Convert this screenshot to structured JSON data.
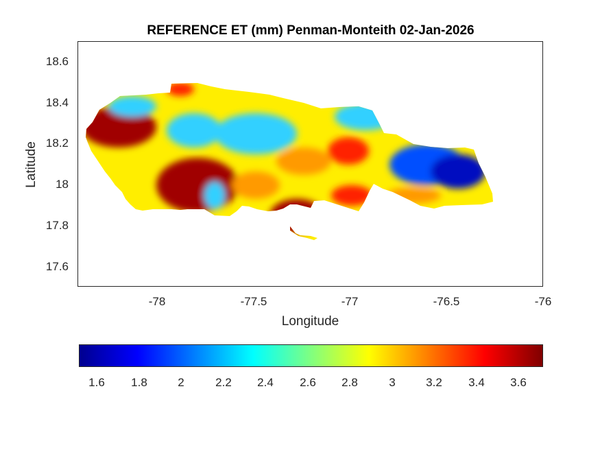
{
  "title": "REFERENCE ET (mm) Penman-Monteith 02-Jan-2026",
  "x_axis": {
    "label": "Longitude",
    "ticks": [
      "-78",
      "-77.5",
      "-77",
      "-76.5",
      "-76"
    ],
    "range": [
      -78.4,
      -76
    ]
  },
  "y_axis": {
    "label": "Latitude",
    "ticks": [
      "18.6",
      "18.4",
      "18.2",
      "18",
      "17.8",
      "17.6"
    ],
    "range": [
      17.5,
      18.7
    ]
  },
  "colorbar": {
    "colormap": "jet",
    "ticks": [
      "1.6",
      "1.8",
      "2",
      "2.2",
      "2.4",
      "2.6",
      "2.8",
      "3",
      "3.2",
      "3.4",
      "3.6"
    ],
    "range": [
      1.52,
      3.72
    ]
  },
  "map_colors": {
    "dark_red": "#a00000",
    "red": "#ff2000",
    "orange": "#ff9a00",
    "yellow": "#ffee00",
    "cyan": "#30d0ff",
    "blue": "#0050ff",
    "dark_blue": "#0010c0"
  }
}
